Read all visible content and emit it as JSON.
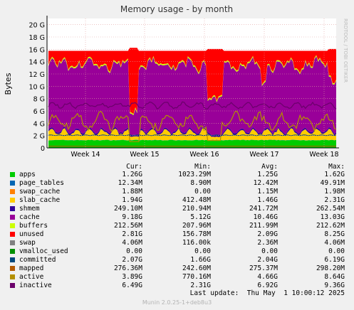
{
  "chart_data": {
    "type": "area",
    "title": "Memory usage - by month",
    "ylabel": "Bytes",
    "ylim": [
      0,
      21
    ],
    "yticks": [
      "0",
      "2 G",
      "4 G",
      "6 G",
      "8 G",
      "10 G",
      "12 G",
      "14 G",
      "16 G",
      "18 G",
      "20 G"
    ],
    "xticks": [
      "Week 14",
      "Week 15",
      "Week 16",
      "Week 17",
      "Week 18"
    ],
    "grid": true,
    "side_label": "RRDTOOL / TOBI OETIKER",
    "columns": {
      "cur": "Cur:",
      "min": "Min:",
      "avg": "Avg:",
      "max": "Max:"
    },
    "series": [
      {
        "name": "apps",
        "color": "#00cc00",
        "cur": "1.26G",
        "min": "1023.29M",
        "avg": "1.25G",
        "max": "1.62G"
      },
      {
        "name": "page_tables",
        "color": "#0066b3",
        "cur": "12.34M",
        "min": "8.90M",
        "avg": "12.42M",
        "max": "49.91M"
      },
      {
        "name": "swap_cache",
        "color": "#ff8000",
        "cur": "1.88M",
        "min": "0.00",
        "avg": "1.15M",
        "max": "1.98M"
      },
      {
        "name": "slab_cache",
        "color": "#ffcc00",
        "cur": "1.94G",
        "min": "412.48M",
        "avg": "1.46G",
        "max": "2.31G"
      },
      {
        "name": "shmem",
        "color": "#330099",
        "cur": "249.10M",
        "min": "210.94M",
        "avg": "241.72M",
        "max": "262.54M"
      },
      {
        "name": "cache",
        "color": "#990099",
        "cur": "9.18G",
        "min": "5.12G",
        "avg": "10.46G",
        "max": "13.03G"
      },
      {
        "name": "buffers",
        "color": "#ccff00",
        "cur": "212.56M",
        "min": "207.96M",
        "avg": "211.99M",
        "max": "212.62M"
      },
      {
        "name": "unused",
        "color": "#ff0000",
        "cur": "2.81G",
        "min": "156.78M",
        "avg": "2.09G",
        "max": "8.25G"
      },
      {
        "name": "swap",
        "color": "#808080",
        "cur": "4.06M",
        "min": "116.00k",
        "avg": "2.36M",
        "max": "4.06M"
      },
      {
        "name": "vmalloc_used",
        "color": "#008f00",
        "cur": "0.00",
        "min": "0.00",
        "avg": "0.00",
        "max": "0.00"
      },
      {
        "name": "committed",
        "color": "#00487d",
        "cur": "2.07G",
        "min": "1.66G",
        "avg": "2.04G",
        "max": "6.19G"
      },
      {
        "name": "mapped",
        "color": "#b35a00",
        "cur": "276.36M",
        "min": "242.60M",
        "avg": "275.37M",
        "max": "298.20M"
      },
      {
        "name": "active",
        "color": "#b38f00",
        "cur": "3.89G",
        "min": "770.16M",
        "avg": "4.66G",
        "max": "8.64G"
      },
      {
        "name": "inactive",
        "color": "#6b006b",
        "cur": "6.49G",
        "min": "2.31G",
        "avg": "6.92G",
        "max": "9.36G"
      }
    ]
  },
  "last_update": "Last update:  Thu May  1 10:00:12 2025",
  "footer": "Munin 2.0.25-1+deb8u3"
}
